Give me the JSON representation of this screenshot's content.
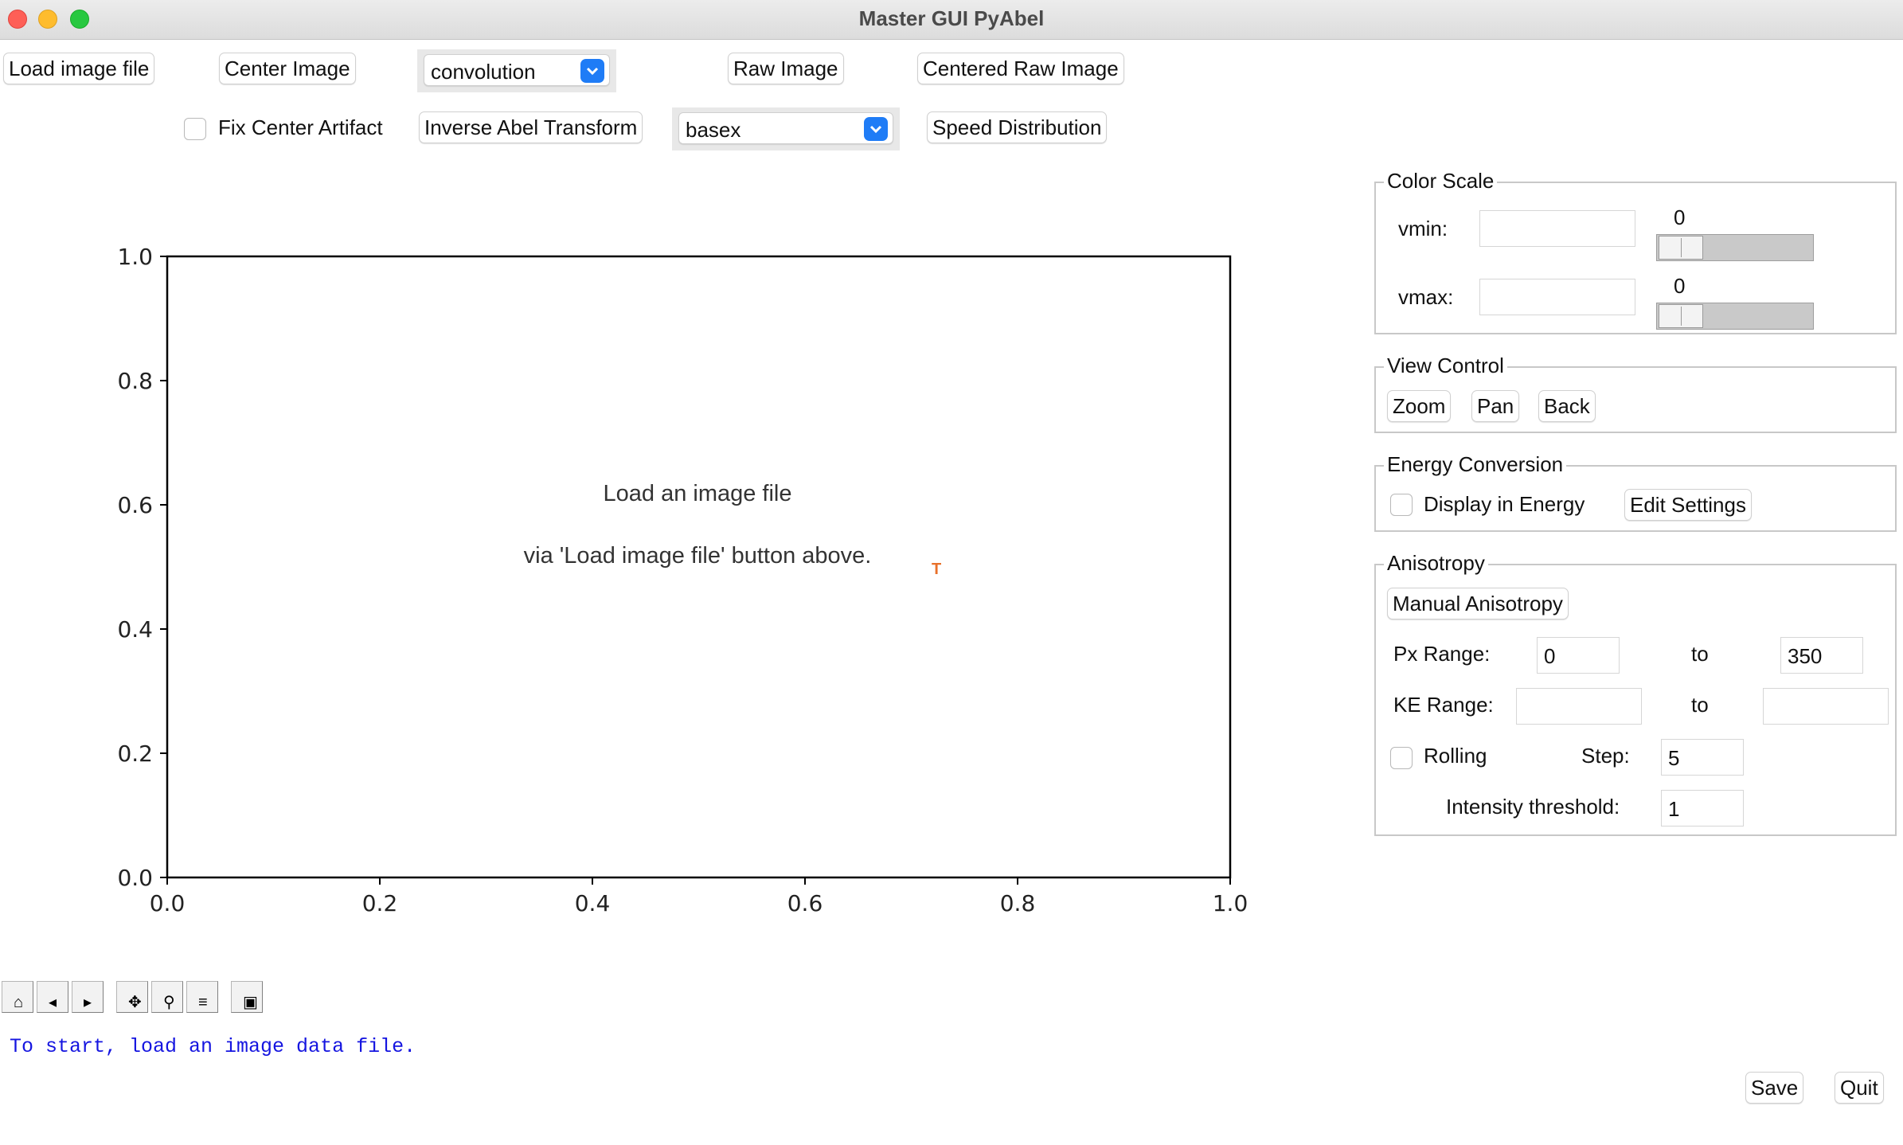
{
  "window": {
    "title": "Master GUI PyAbel"
  },
  "toolbar_row1": {
    "load_image": "Load image file",
    "center_image": "Center Image",
    "center_method": "convolution",
    "raw_image": "Raw Image",
    "centered_raw_image": "Centered Raw Image"
  },
  "toolbar_row2": {
    "fix_center_artifact": "Fix Center Artifact",
    "fix_center_checked": false,
    "inverse_abel": "Inverse Abel Transform",
    "transform_method": "basex",
    "speed_distribution": "Speed Distribution"
  },
  "plot": {
    "message_line1": "Load an image file",
    "message_line2": "via 'Load image file' button above.",
    "marker_char": "T",
    "marker_color": "#e8702a",
    "xlim": [
      0.0,
      1.0
    ],
    "ylim": [
      0.0,
      1.0
    ],
    "x_ticks": [
      "0.0",
      "0.2",
      "0.4",
      "0.6",
      "0.8",
      "1.0"
    ],
    "y_ticks": [
      "0.0",
      "0.2",
      "0.4",
      "0.6",
      "0.8",
      "1.0"
    ]
  },
  "nav_toolbar": {
    "buttons": [
      {
        "name": "home-icon",
        "glyph": "⌂"
      },
      {
        "name": "back-icon",
        "glyph": "◂"
      },
      {
        "name": "forward-icon",
        "glyph": "▸"
      },
      {
        "name": "pan-icon",
        "glyph": "✥"
      },
      {
        "name": "zoom-icon",
        "glyph": "⚲"
      },
      {
        "name": "subplots-icon",
        "glyph": "≡"
      },
      {
        "name": "save-figure-icon",
        "glyph": "▣"
      }
    ]
  },
  "status_text": "To start, load an image data file.",
  "status_color": "#1515e0",
  "color_scale": {
    "title": "Color Scale",
    "vmin_label": "vmin:",
    "vmin_value": "",
    "vmin_slider": "0",
    "vmax_label": "vmax:",
    "vmax_value": "",
    "vmax_slider": "0"
  },
  "view_control": {
    "title": "View Control",
    "zoom": "Zoom",
    "pan": "Pan",
    "back": "Back"
  },
  "energy_conversion": {
    "title": "Energy Conversion",
    "display_in_energy": "Display in Energy",
    "display_checked": false,
    "edit_settings": "Edit Settings"
  },
  "anisotropy": {
    "title": "Anisotropy",
    "manual": "Manual Anisotropy",
    "px_range_label": "Px Range:",
    "px_from": "0",
    "to_label": "to",
    "px_to": "350",
    "ke_range_label": "KE Range:",
    "ke_from": "",
    "ke_to": "",
    "rolling": "Rolling",
    "rolling_checked": false,
    "step_label": "Step:",
    "step_value": "5",
    "intensity_label": "Intensity threshold:",
    "intensity_value": "1"
  },
  "bottom": {
    "save": "Save",
    "quit": "Quit"
  },
  "accent_color": "#1f7cf6"
}
